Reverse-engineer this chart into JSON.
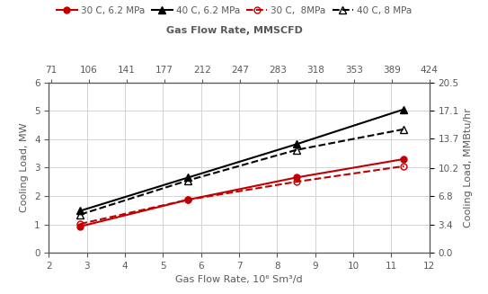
{
  "x_bottom_label": "Gas Flow Rate, 10⁶ Sm³/d",
  "x_top_ticks": [
    71,
    106,
    141,
    177,
    212,
    247,
    283,
    318,
    353,
    389,
    424
  ],
  "x_top_label": "Gas Flow Rate, MMSCFD",
  "x_top_positions": [
    2.07,
    3.09,
    4.11,
    5.15,
    6.18,
    7.2,
    8.24,
    9.27,
    10.3,
    11.33,
    12.36
  ],
  "yleft_label": "Cooling Load, MW",
  "yright_label": "Cooling Load, MMBtu/hr",
  "yleft_lim": [
    0,
    6
  ],
  "yright_lim": [
    0.0,
    20.5
  ],
  "yright_ticks": [
    0.0,
    3.4,
    6.8,
    10.2,
    13.7,
    17.1,
    20.5
  ],
  "series": [
    {
      "label": "30 C, 6.2 MPa",
      "x": [
        2.83,
        5.66,
        8.5,
        11.33
      ],
      "y": [
        0.93,
        1.87,
        2.65,
        3.3
      ],
      "color": "#c00000",
      "linestyle": "-",
      "marker": "o",
      "markerfacecolor": "#c00000",
      "markeredgecolor": "#c00000",
      "markersize": 5,
      "linewidth": 1.5
    },
    {
      "label": "40 C, 6.2 MPa",
      "x": [
        2.83,
        5.66,
        8.5,
        11.33
      ],
      "y": [
        1.48,
        2.65,
        3.82,
        5.05
      ],
      "color": "#000000",
      "linestyle": "-",
      "marker": "^",
      "markerfacecolor": "#000000",
      "markeredgecolor": "#000000",
      "markersize": 6,
      "linewidth": 1.5
    },
    {
      "label": "30 C,  8MPa",
      "x": [
        2.83,
        5.66,
        8.5,
        11.33
      ],
      "y": [
        1.02,
        1.87,
        2.5,
        3.05
      ],
      "color": "#c00000",
      "linestyle": "--",
      "marker": "o",
      "markerfacecolor": "none",
      "markeredgecolor": "#c00000",
      "markersize": 5,
      "linewidth": 1.5
    },
    {
      "label": "40 C, 8 MPa",
      "x": [
        2.83,
        5.66,
        8.5,
        11.33
      ],
      "y": [
        1.35,
        2.55,
        3.62,
        4.35
      ],
      "color": "#000000",
      "linestyle": "--",
      "marker": "^",
      "markerfacecolor": "none",
      "markeredgecolor": "#000000",
      "markersize": 6,
      "linewidth": 1.5
    }
  ],
  "grid_color": "#d3d3d3",
  "background_color": "#ffffff",
  "text_color": "#595959",
  "legend_fontsize": 7.5,
  "axis_fontsize": 8,
  "tick_fontsize": 7.5
}
